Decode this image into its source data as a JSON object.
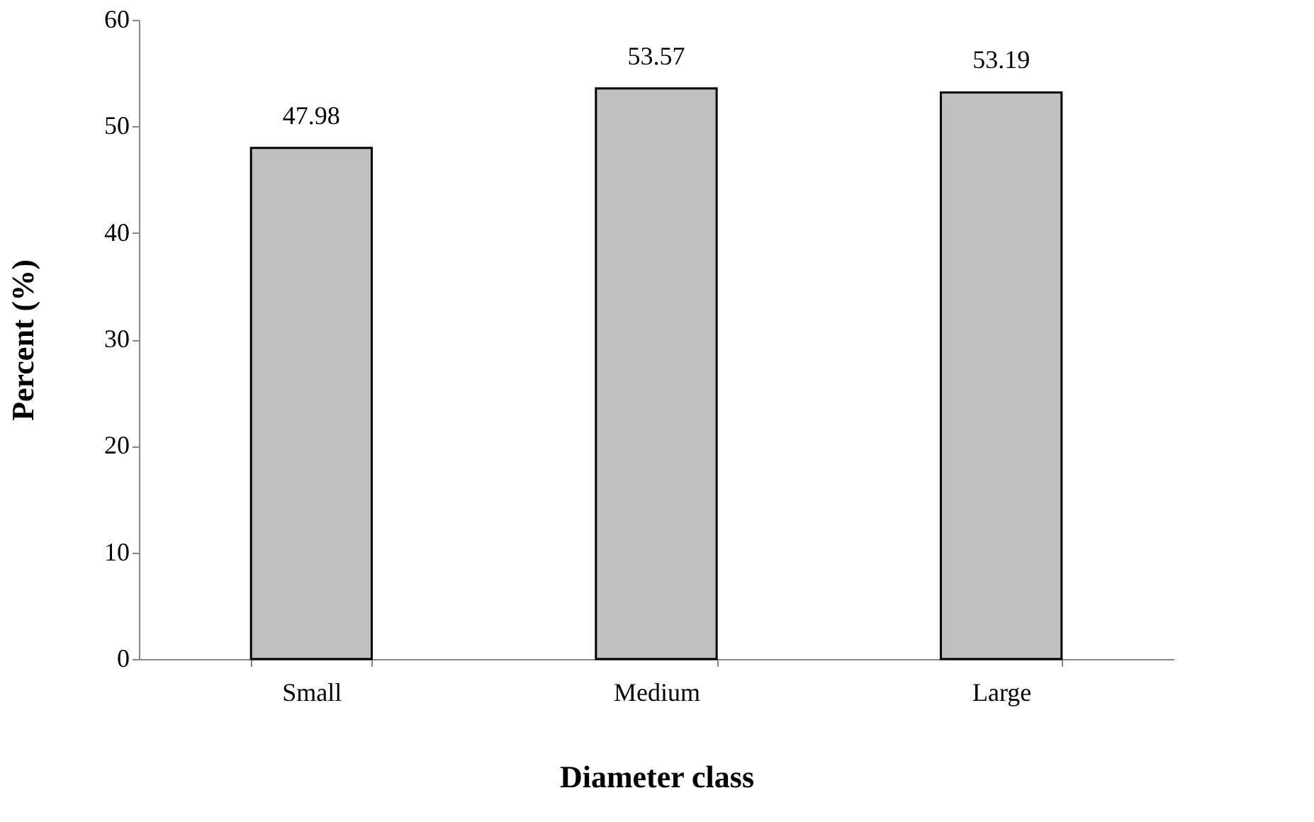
{
  "chart_data": {
    "type": "bar",
    "categories": [
      "Small",
      "Medium",
      "Large"
    ],
    "values": [
      47.98,
      53.57,
      53.19
    ],
    "color": "#c0c0c0",
    "xlabel": "Diameter class",
    "ylabel": "Percent (%)",
    "ylim": [
      0,
      60
    ],
    "yticks": [
      0,
      10,
      20,
      30,
      40,
      50,
      60
    ],
    "grid": false,
    "data_labels": true
  }
}
